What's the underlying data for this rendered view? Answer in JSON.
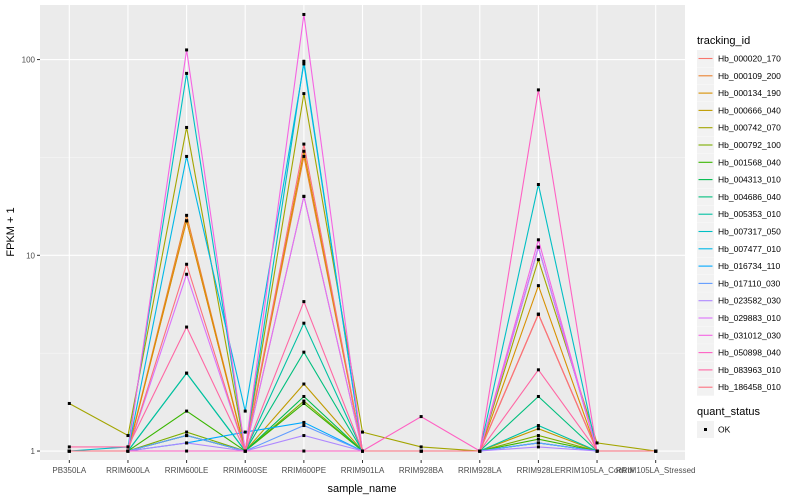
{
  "chart_data": {
    "type": "line",
    "xlabel": "sample_name",
    "ylabel": "FPKM + 1",
    "y_scale": "log10",
    "ylim": [
      0.9,
      190
    ],
    "y_ticks": [
      1,
      10,
      100
    ],
    "y_tick_labels": [
      "1",
      "10",
      "100"
    ],
    "categories": [
      "PB350LA",
      "RRIM600LA",
      "RRIM600LE",
      "RRIM600SE",
      "RRIM600PE",
      "RRIM901LA",
      "RRIM928BA",
      "RRIM928LA",
      "RRIM928LE",
      "RRIM105LA_Control",
      "RRIM105LA_Stressed"
    ],
    "grid": true,
    "legend_position": "right",
    "legend_title": "tracking_id",
    "legend2_title": "quant_status",
    "legend2_entries": [
      "OK"
    ],
    "series": [
      {
        "name": "Hb_000020_170",
        "color": "#F8766D",
        "values": [
          1.0,
          1.0,
          15.0,
          1.0,
          20.0,
          1.0,
          1.0,
          1.0,
          5.0,
          1.0,
          1.0
        ]
      },
      {
        "name": "Hb_000109_200",
        "color": "#EA8331",
        "values": [
          1.0,
          1.0,
          16.0,
          1.0,
          32.0,
          1.0,
          1.0,
          1.0,
          5.0,
          1.0,
          1.0
        ]
      },
      {
        "name": "Hb_000134_190",
        "color": "#D89000",
        "values": [
          1.0,
          1.0,
          15.0,
          1.0,
          34.0,
          1.0,
          1.0,
          1.0,
          7.0,
          1.0,
          1.0
        ]
      },
      {
        "name": "Hb_000666_040",
        "color": "#C09B00",
        "values": [
          1.0,
          1.0,
          1.2,
          1.0,
          2.2,
          1.0,
          1.0,
          1.0,
          1.3,
          1.0,
          1.0
        ]
      },
      {
        "name": "Hb_000742_070",
        "color": "#A3A500",
        "values": [
          1.75,
          1.2,
          45.0,
          1.0,
          67.0,
          1.25,
          1.05,
          1.0,
          9.5,
          1.1,
          1.0
        ]
      },
      {
        "name": "Hb_000792_100",
        "color": "#7CAE00",
        "values": [
          1.0,
          1.0,
          1.25,
          1.0,
          1.8,
          1.0,
          1.0,
          1.0,
          1.2,
          1.0,
          1.0
        ]
      },
      {
        "name": "Hb_001568_040",
        "color": "#39B600",
        "values": [
          1.0,
          1.0,
          1.6,
          1.0,
          1.75,
          1.0,
          1.0,
          1.0,
          1.15,
          1.0,
          1.0
        ]
      },
      {
        "name": "Hb_004313_010",
        "color": "#00BB4E",
        "values": [
          1.0,
          1.0,
          1.2,
          1.0,
          1.9,
          1.0,
          1.0,
          1.0,
          1.1,
          1.0,
          1.0
        ]
      },
      {
        "name": "Hb_004686_040",
        "color": "#00BF7D",
        "values": [
          1.0,
          1.0,
          2.5,
          1.0,
          3.2,
          1.0,
          1.0,
          1.0,
          1.9,
          1.0,
          1.0
        ]
      },
      {
        "name": "Hb_005353_010",
        "color": "#00C1A3",
        "values": [
          1.0,
          1.0,
          2.5,
          1.0,
          4.5,
          1.0,
          1.0,
          1.0,
          1.35,
          1.0,
          1.0
        ]
      },
      {
        "name": "Hb_007317_050",
        "color": "#00BFC4",
        "values": [
          1.0,
          1.05,
          85.0,
          1.0,
          98.0,
          1.0,
          1.0,
          1.0,
          23.0,
          1.0,
          1.0
        ]
      },
      {
        "name": "Hb_007477_010",
        "color": "#00B8E7",
        "values": [
          1.0,
          1.0,
          32.0,
          1.6,
          95.0,
          1.0,
          1.0,
          1.0,
          11.0,
          1.0,
          1.0
        ]
      },
      {
        "name": "Hb_016734_110",
        "color": "#00A9FF",
        "values": [
          1.0,
          1.0,
          1.1,
          1.25,
          1.4,
          1.0,
          1.0,
          1.0,
          1.1,
          1.0,
          1.0
        ]
      },
      {
        "name": "Hb_017110_030",
        "color": "#619CFF",
        "values": [
          1.0,
          1.0,
          1.2,
          1.0,
          1.35,
          1.0,
          1.0,
          1.0,
          1.1,
          1.0,
          1.0
        ]
      },
      {
        "name": "Hb_023582_030",
        "color": "#AE87FF",
        "values": [
          1.0,
          1.0,
          1.1,
          1.0,
          1.2,
          1.0,
          1.0,
          1.0,
          1.05,
          1.0,
          1.0
        ]
      },
      {
        "name": "Hb_029883_010",
        "color": "#DB72FB",
        "values": [
          1.0,
          1.0,
          8.0,
          1.0,
          20.0,
          1.0,
          1.0,
          1.0,
          11.0,
          1.0,
          1.0
        ]
      },
      {
        "name": "Hb_031012_030",
        "color": "#F564E3",
        "values": [
          1.0,
          1.0,
          112.0,
          1.0,
          170.0,
          1.0,
          1.0,
          1.0,
          12.0,
          1.0,
          1.0
        ]
      },
      {
        "name": "Hb_050898_040",
        "color": "#FF61C3",
        "values": [
          1.0,
          1.0,
          1.0,
          1.0,
          1.0,
          1.0,
          1.5,
          1.0,
          70.0,
          1.0,
          1.0
        ]
      },
      {
        "name": "Hb_083963_010",
        "color": "#FF67A4",
        "values": [
          1.05,
          1.05,
          4.3,
          1.0,
          5.8,
          1.0,
          1.0,
          1.0,
          2.6,
          1.0,
          1.0
        ]
      },
      {
        "name": "Hb_186458_010",
        "color": "#FC717F",
        "values": [
          1.0,
          1.0,
          9.0,
          1.0,
          37.0,
          1.0,
          1.0,
          1.0,
          5.0,
          1.0,
          1.0
        ]
      }
    ]
  }
}
